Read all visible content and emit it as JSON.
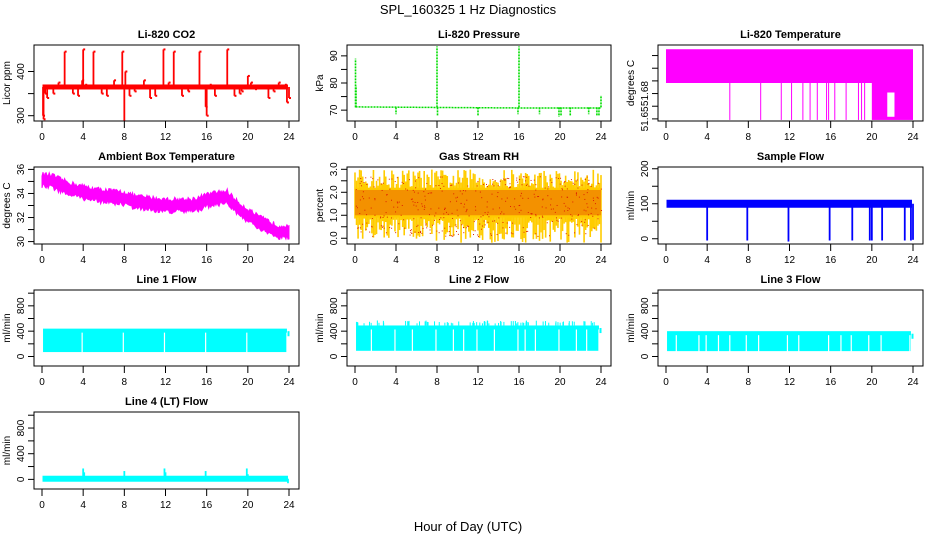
{
  "figure": {
    "title": "SPL_160325  1 Hz Diagnostics",
    "xlabel": "Hour of Day (UTC)"
  },
  "chart_data": [
    {
      "type": "line",
      "title": "Li-820 CO2",
      "ylabel": "Licor ppm",
      "color": "#ff0000",
      "xlim": [
        0,
        24
      ],
      "ylim": [
        288,
        460
      ],
      "xticks": [
        0,
        4,
        8,
        12,
        16,
        20,
        24
      ],
      "xticklabels": [
        "0",
        "4",
        "8",
        "12",
        "16",
        "20",
        "24"
      ],
      "yticks": [
        300,
        350,
        400
      ],
      "yticklabels": [
        "300",
        "",
        "400"
      ],
      "baseline": 365,
      "baseline_width": 2.5,
      "noise": 2,
      "spikes": [
        [
          0.1,
          300
        ],
        [
          0.15,
          292
        ],
        [
          0.3,
          350
        ],
        [
          0.5,
          340
        ],
        [
          1.1,
          350
        ],
        [
          1.6,
          375
        ],
        [
          2.2,
          445
        ],
        [
          3.0,
          350
        ],
        [
          3.5,
          345
        ],
        [
          3.9,
          380
        ],
        [
          4.0,
          450
        ],
        [
          4.2,
          370
        ],
        [
          5.0,
          445
        ],
        [
          5.8,
          350
        ],
        [
          6.3,
          345
        ],
        [
          7.0,
          380
        ],
        [
          7.8,
          445
        ],
        [
          8.0,
          280
        ],
        [
          8.1,
          400
        ],
        [
          8.5,
          345
        ],
        [
          9.0,
          355
        ],
        [
          9.9,
          380
        ],
        [
          10.5,
          340
        ],
        [
          11.0,
          345
        ],
        [
          11.8,
          450
        ],
        [
          12.3,
          375
        ],
        [
          12.8,
          445
        ],
        [
          13.6,
          345
        ],
        [
          14.2,
          355
        ],
        [
          15.3,
          445
        ],
        [
          15.9,
          320
        ],
        [
          16.0,
          300
        ],
        [
          16.3,
          370
        ],
        [
          16.8,
          345
        ],
        [
          18.0,
          450
        ],
        [
          18.7,
          345
        ],
        [
          19.2,
          350
        ],
        [
          19.4,
          355
        ],
        [
          20.0,
          390
        ],
        [
          20.3,
          375
        ],
        [
          20.7,
          360
        ],
        [
          22.0,
          340
        ],
        [
          22.5,
          355
        ],
        [
          23.0,
          375
        ],
        [
          23.6,
          370
        ],
        [
          23.8,
          330
        ],
        [
          24.0,
          340
        ]
      ]
    },
    {
      "type": "line",
      "title": "Li-820 Pressure",
      "ylabel": "kPa",
      "color": "#00dd00",
      "xlim": [
        0,
        24
      ],
      "ylim": [
        66,
        94
      ],
      "xticks": [
        0,
        4,
        8,
        12,
        16,
        20,
        24
      ],
      "xticklabels": [
        "0",
        "4",
        "8",
        "12",
        "16",
        "20",
        "24"
      ],
      "yticks": [
        70,
        75,
        80,
        85,
        90
      ],
      "yticklabels": [
        "70",
        "",
        "80",
        "",
        "90"
      ],
      "baseline_segments": [
        [
          0.05,
          71.2
        ],
        [
          7.5,
          71.0
        ],
        [
          16,
          70.8
        ],
        [
          24,
          70.8
        ]
      ],
      "baseline_width": 1.5,
      "noise": 0.2,
      "spikes": [
        [
          0.05,
          89
        ],
        [
          0.1,
          79
        ],
        [
          4.0,
          68.5
        ],
        [
          8.0,
          93.5
        ],
        [
          8.05,
          68
        ],
        [
          12.0,
          68
        ],
        [
          15.9,
          68.5
        ],
        [
          16.0,
          93.5
        ],
        [
          18.0,
          68.5
        ],
        [
          19.9,
          67.5
        ],
        [
          20.1,
          68
        ],
        [
          21.0,
          68
        ],
        [
          22.8,
          68.5
        ],
        [
          23.6,
          68
        ],
        [
          23.8,
          68
        ],
        [
          24.0,
          75.5
        ]
      ]
    },
    {
      "type": "area",
      "title": "Li-820 Temperature",
      "ylabel": "degrees C",
      "color": "#ff00ff",
      "xlim": [
        0,
        24
      ],
      "ylim": [
        51.648,
        51.72
      ],
      "xticks": [
        0,
        4,
        8,
        12,
        16,
        20,
        24
      ],
      "xticklabels": [
        "0",
        "4",
        "8",
        "12",
        "16",
        "20",
        "24"
      ],
      "yticks": [
        51.65,
        51.662,
        51.674,
        51.686,
        51.698,
        51.71
      ],
      "yticklabels": [
        "51.65",
        "",
        "51.68",
        "",
        "",
        ""
      ],
      "band_upper": 51.716,
      "band_lower": 51.684,
      "drop_to": 51.649,
      "dropouts": [
        6.2,
        9.2,
        11.2,
        12.2,
        13.3,
        14.0,
        14.7,
        15.6,
        15.8,
        16.4,
        17.5,
        18.7,
        19.0,
        19.3
      ],
      "floor_from": 20.0
    },
    {
      "type": "line",
      "title": "Ambient Box Temperature",
      "ylabel": "degrees C",
      "color": "#ff00ff",
      "xlim": [
        0,
        24
      ],
      "ylim": [
        29.8,
        36.2
      ],
      "xticks": [
        0,
        4,
        8,
        12,
        16,
        20,
        24
      ],
      "xticklabels": [
        "0",
        "4",
        "8",
        "12",
        "16",
        "20",
        "24"
      ],
      "yticks": [
        30,
        31,
        32,
        33,
        34,
        35,
        36
      ],
      "yticklabels": [
        "30",
        "",
        "32",
        "",
        "34",
        "",
        "36"
      ],
      "x": [
        0,
        1,
        2,
        3,
        4,
        5,
        6,
        7,
        8,
        9,
        10,
        11,
        12,
        13,
        14,
        15,
        16,
        17,
        18,
        19,
        20,
        21,
        22,
        23,
        24
      ],
      "y": [
        35.1,
        35.0,
        34.6,
        34.3,
        34.1,
        33.9,
        33.8,
        33.7,
        33.6,
        33.3,
        33.2,
        33.1,
        33.0,
        33.0,
        33.0,
        33.1,
        33.4,
        33.6,
        33.7,
        32.8,
        32.2,
        31.6,
        31.2,
        30.8,
        30.9
      ],
      "band_halfwidth": 0.5
    },
    {
      "type": "line",
      "title": "Gas Stream RH",
      "ylabel": "percent",
      "color": "#ffcc00",
      "color2": "#dd2200",
      "xlim": [
        0,
        24
      ],
      "ylim": [
        -0.25,
        3.1
      ],
      "xticks": [
        0,
        4,
        8,
        12,
        16,
        20,
        24
      ],
      "xticklabels": [
        "0",
        "4",
        "8",
        "12",
        "16",
        "20",
        "24"
      ],
      "yticks": [
        0.0,
        0.5,
        1.0,
        1.5,
        2.0,
        2.5,
        3.0
      ],
      "yticklabels": [
        "0.0",
        "",
        "1.0",
        "",
        "2.0",
        "",
        "3.0"
      ],
      "mean": 1.6,
      "range": [
        -0.2,
        3.0
      ]
    },
    {
      "type": "line",
      "title": "Sample Flow",
      "ylabel": "ml/min",
      "color": "#0000ff",
      "xlim": [
        0,
        24
      ],
      "ylim": [
        -15,
        205
      ],
      "xticks": [
        0,
        4,
        8,
        12,
        16,
        20,
        24
      ],
      "xticklabels": [
        "0",
        "4",
        "8",
        "12",
        "16",
        "20",
        "24"
      ],
      "yticks": [
        0,
        50,
        100,
        150,
        200
      ],
      "yticklabels": [
        "0",
        "",
        "100",
        "",
        "200"
      ],
      "baseline": 100,
      "baseline_width": 4,
      "spikes": [
        [
          4.0,
          -5
        ],
        [
          7.9,
          -5
        ],
        [
          11.9,
          -8
        ],
        [
          15.9,
          -5
        ],
        [
          18.1,
          -5
        ],
        [
          19.8,
          -5
        ],
        [
          20.0,
          -5
        ],
        [
          21.0,
          -5
        ],
        [
          23.2,
          -5
        ],
        [
          23.8,
          -5
        ],
        [
          24.0,
          -3
        ]
      ]
    },
    {
      "type": "area",
      "title": "Line 1 Flow",
      "ylabel": "ml/min",
      "color": "#00ffff",
      "xlim": [
        0,
        24
      ],
      "ylim": [
        -150,
        1050
      ],
      "xticks": [
        0,
        4,
        8,
        12,
        16,
        20,
        24
      ],
      "xticklabels": [
        "0",
        "4",
        "8",
        "12",
        "16",
        "20",
        "24"
      ],
      "yticks": [
        0,
        200,
        400,
        600,
        800,
        1000
      ],
      "yticklabels": [
        "0",
        "",
        "400",
        "",
        "800",
        ""
      ],
      "band_upper": 440,
      "band_lower": 70,
      "gaps": [
        3.9,
        7.9,
        11.9,
        15.9,
        19.9,
        23.8
      ]
    },
    {
      "type": "area",
      "title": "Line 2 Flow",
      "ylabel": "ml/min",
      "color": "#00ffff",
      "xlim": [
        0,
        24
      ],
      "ylim": [
        -150,
        1050
      ],
      "xticks": [
        0,
        4,
        8,
        12,
        16,
        20,
        24
      ],
      "xticklabels": [
        "0",
        "4",
        "8",
        "12",
        "16",
        "20",
        "24"
      ],
      "yticks": [
        0,
        200,
        400,
        600,
        800,
        1000
      ],
      "yticklabels": [
        "0",
        "",
        "400",
        "",
        "800",
        ""
      ],
      "band_upper": 490,
      "band_lower": 90,
      "gaps": [
        1.6,
        3.9,
        5.6,
        7.9,
        9.6,
        10.6,
        11.9,
        13.6,
        15.9,
        16.6,
        17.6,
        19.9,
        21.6,
        22.6,
        23.8
      ]
    },
    {
      "type": "area",
      "title": "Line 3 Flow",
      "ylabel": "ml/min",
      "color": "#00ffff",
      "xlim": [
        0,
        24
      ],
      "ylim": [
        -150,
        1050
      ],
      "xticks": [
        0,
        4,
        8,
        12,
        16,
        20,
        24
      ],
      "xticklabels": [
        "0",
        "4",
        "8",
        "12",
        "16",
        "20",
        "24"
      ],
      "yticks": [
        0,
        200,
        400,
        600,
        800,
        1000
      ],
      "yticklabels": [
        "0",
        "",
        "400",
        "",
        "800",
        ""
      ],
      "band_upper": 400,
      "band_lower": 85,
      "gaps": [
        1.0,
        3.2,
        3.9,
        5.1,
        6.2,
        7.8,
        9.0,
        11.8,
        12.9,
        15.8,
        17.0,
        18.0,
        19.7,
        20.9,
        23.7
      ]
    },
    {
      "type": "line",
      "title": "Line 4 (LT) Flow",
      "ylabel": "ml/min",
      "color": "#00ffff",
      "xlim": [
        0,
        24
      ],
      "ylim": [
        -150,
        1050
      ],
      "xticks": [
        0,
        4,
        8,
        12,
        16,
        20,
        24
      ],
      "xticklabels": [
        "0",
        "4",
        "8",
        "12",
        "16",
        "20",
        "24"
      ],
      "yticks": [
        0,
        200,
        400,
        600,
        800,
        1000
      ],
      "yticklabels": [
        "0",
        "",
        "400",
        "",
        "800",
        ""
      ],
      "baseline": 10,
      "baseline_width": 3,
      "spikes": [
        [
          4.0,
          170
        ],
        [
          4.1,
          110
        ],
        [
          8.0,
          130
        ],
        [
          11.9,
          170
        ],
        [
          12.0,
          110
        ],
        [
          15.9,
          130
        ],
        [
          19.9,
          170
        ],
        [
          20.0,
          80
        ],
        [
          23.9,
          -60
        ]
      ]
    }
  ]
}
